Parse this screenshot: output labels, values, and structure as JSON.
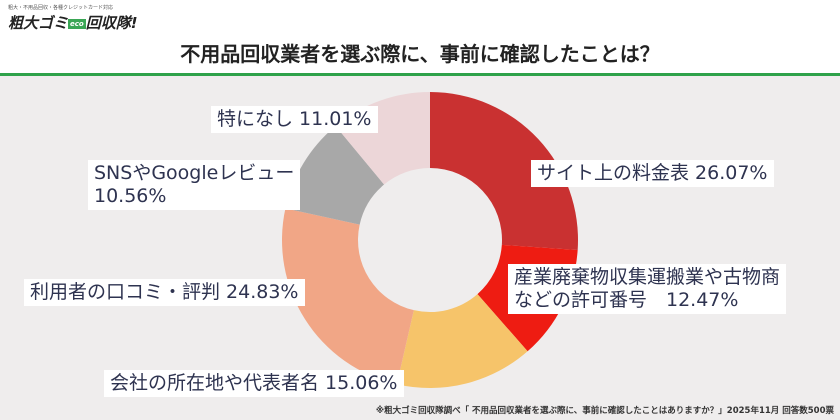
{
  "brand": {
    "tagline": "粗大・不用品回収・各種クレジットカード対応",
    "name": "粗大ゴミ",
    "eco": "eco",
    "name2": "回収隊!"
  },
  "title": "不用品回収業者を選ぶ際に、事前に確認したことは？",
  "footer": "※粗大ゴミ回収隊調べ「 不用品回収業者を選ぶ際に、事前に確認したことはありますか？」2025年11月 回答数500票",
  "chart_data": {
    "type": "pie",
    "donut": true,
    "start": "top",
    "direction": "clockwise",
    "slices": [
      {
        "label": "サイト上の料金表 26.07%",
        "value": 26.07,
        "color": "#c93131"
      },
      {
        "label": "産業廃棄物収集運搬業や古物商などの許可番号　12.47%",
        "line1": "産業廃棄物収集運搬業や古物商",
        "line2": "などの許可番号　12.47%",
        "value": 12.47,
        "color": "#ee1c12"
      },
      {
        "label": "会社の所在地や代表者名 15.06%",
        "value": 15.06,
        "color": "#f6c46a"
      },
      {
        "label": "利用者の口コミ・評判 24.83%",
        "value": 24.83,
        "color": "#f1a686"
      },
      {
        "label": "SNSやGoogleレビュー 10.56%",
        "line1": "SNSやGoogleレビュー",
        "line2": "10.56%",
        "value": 10.56,
        "color": "#a8a8a8"
      },
      {
        "label": "特になし 11.01%",
        "value": 11.01,
        "color": "#ecd6d8"
      }
    ]
  }
}
